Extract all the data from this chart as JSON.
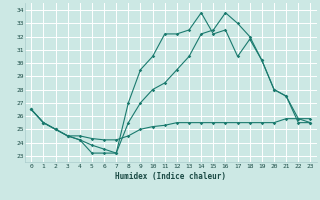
{
  "xlabel": "Humidex (Indice chaleur)",
  "xlim": [
    -0.5,
    23.5
  ],
  "ylim": [
    22.5,
    34.5
  ],
  "yticks": [
    23,
    24,
    25,
    26,
    27,
    28,
    29,
    30,
    31,
    32,
    33,
    34
  ],
  "xticks": [
    0,
    1,
    2,
    3,
    4,
    5,
    6,
    7,
    8,
    9,
    10,
    11,
    12,
    13,
    14,
    15,
    16,
    17,
    18,
    19,
    20,
    21,
    22,
    23
  ],
  "line_color": "#1a7a6e",
  "background_color": "#cce8e4",
  "grid_color": "#ffffff",
  "line1_x": [
    0,
    1,
    2,
    3,
    4,
    5,
    6,
    7,
    8,
    9,
    10,
    11,
    12,
    13,
    14,
    15,
    16,
    17,
    18,
    19,
    20,
    21,
    22,
    23
  ],
  "line1_y": [
    26.5,
    25.5,
    25.0,
    24.5,
    24.2,
    23.2,
    23.2,
    23.2,
    27.0,
    29.5,
    30.5,
    32.2,
    32.2,
    32.5,
    33.8,
    32.2,
    32.5,
    30.5,
    31.8,
    30.2,
    28.0,
    27.5,
    25.5,
    25.5
  ],
  "line2_x": [
    0,
    1,
    2,
    3,
    4,
    5,
    6,
    7,
    8,
    9,
    10,
    11,
    12,
    13,
    14,
    15,
    16,
    17,
    18,
    19,
    20,
    21,
    22,
    23
  ],
  "line2_y": [
    26.5,
    25.5,
    25.0,
    24.5,
    24.2,
    23.8,
    23.5,
    23.2,
    25.5,
    27.0,
    28.0,
    28.5,
    29.5,
    30.5,
    32.2,
    32.5,
    33.8,
    33.0,
    32.0,
    30.2,
    28.0,
    27.5,
    25.8,
    25.5
  ],
  "line3_x": [
    0,
    1,
    2,
    3,
    4,
    5,
    6,
    7,
    8,
    9,
    10,
    11,
    12,
    13,
    14,
    15,
    16,
    17,
    18,
    19,
    20,
    21,
    22,
    23
  ],
  "line3_y": [
    26.5,
    25.5,
    25.0,
    24.5,
    24.5,
    24.3,
    24.2,
    24.2,
    24.5,
    25.0,
    25.2,
    25.3,
    25.5,
    25.5,
    25.5,
    25.5,
    25.5,
    25.5,
    25.5,
    25.5,
    25.5,
    25.8,
    25.8,
    25.8
  ]
}
